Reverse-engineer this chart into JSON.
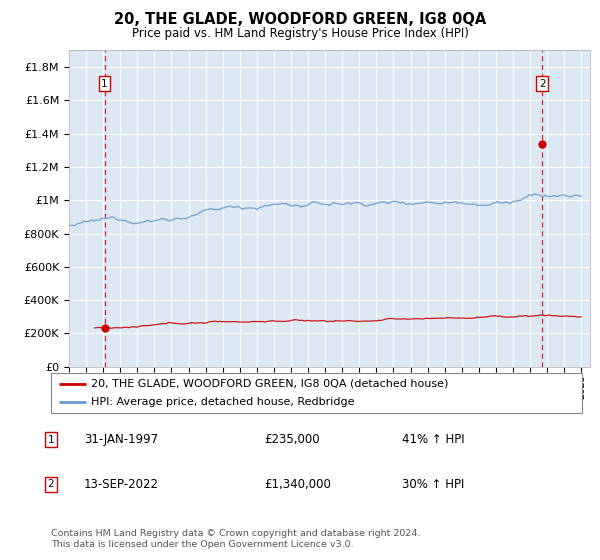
{
  "title": "20, THE GLADE, WOODFORD GREEN, IG8 0QA",
  "subtitle": "Price paid vs. HM Land Registry's House Price Index (HPI)",
  "ylim": [
    0,
    1900000
  ],
  "yticks": [
    0,
    200000,
    400000,
    600000,
    800000,
    1000000,
    1200000,
    1400000,
    1600000,
    1800000
  ],
  "ytick_labels": [
    "£0",
    "£200K",
    "£400K",
    "£600K",
    "£800K",
    "£1M",
    "£1.2M",
    "£1.4M",
    "£1.6M",
    "£1.8M"
  ],
  "xlim_start": 1995.0,
  "xlim_end": 2025.5,
  "sale1_x": 1997.08,
  "sale1_y": 235000,
  "sale2_x": 2022.71,
  "sale2_y": 1340000,
  "bg_color": "#dce9f5",
  "grid_color": "#ffffff",
  "sale_line_color": "#cc0000",
  "hpi_line_color": "#6699cc",
  "marker_color": "#cc0000",
  "dashed_line_color": "#cc0000",
  "legend_label1": "20, THE GLADE, WOODFORD GREEN, IG8 0QA (detached house)",
  "legend_label2": "HPI: Average price, detached house, Redbridge",
  "note1_num": "1",
  "note1_date": "31-JAN-1997",
  "note1_price": "£235,000",
  "note1_hpi": "41% ↑ HPI",
  "note2_num": "2",
  "note2_date": "13-SEP-2022",
  "note2_price": "£1,340,000",
  "note2_hpi": "30% ↑ HPI",
  "footer": "Contains HM Land Registry data © Crown copyright and database right 2024.\nThis data is licensed under the Open Government Licence v3.0."
}
